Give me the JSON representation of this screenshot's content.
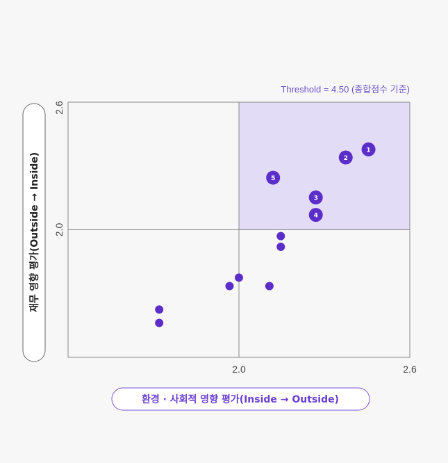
{
  "chart_data": {
    "type": "scatter",
    "xlabel": "환경 · 사회적 영향 평가(Inside → Outside)",
    "ylabel": "재무 영향 평가(Outside → Inside)",
    "xlim": [
      1.4,
      2.6
    ],
    "ylim": [
      1.4,
      2.6
    ],
    "x_ticks": [
      "2.0",
      "2.6"
    ],
    "y_ticks": [
      "2.0",
      "2.6"
    ],
    "threshold": {
      "x": 2.0,
      "y": 2.0,
      "label": "Threshold = 4.50 (종합점수 기준)"
    },
    "colors": {
      "point": "#5b2dc9",
      "quadrant": "#e2dcf7",
      "axis": "#888888"
    },
    "points": [
      {
        "label": "1",
        "x": 2.455,
        "y": 2.378
      },
      {
        "label": "2",
        "x": 2.375,
        "y": 2.34
      },
      {
        "label": "5",
        "x": 2.12,
        "y": 2.245
      },
      {
        "label": "3",
        "x": 2.27,
        "y": 2.152
      },
      {
        "label": "4",
        "x": 2.27,
        "y": 2.07
      },
      {
        "label": "",
        "x": 2.147,
        "y": 1.97
      },
      {
        "label": "",
        "x": 2.147,
        "y": 1.92
      },
      {
        "label": "",
        "x": 2.0,
        "y": 1.775
      },
      {
        "label": "",
        "x": 1.967,
        "y": 1.735
      },
      {
        "label": "",
        "x": 2.107,
        "y": 1.735
      },
      {
        "label": "",
        "x": 1.72,
        "y": 1.625
      },
      {
        "label": "",
        "x": 1.72,
        "y": 1.562
      }
    ]
  }
}
